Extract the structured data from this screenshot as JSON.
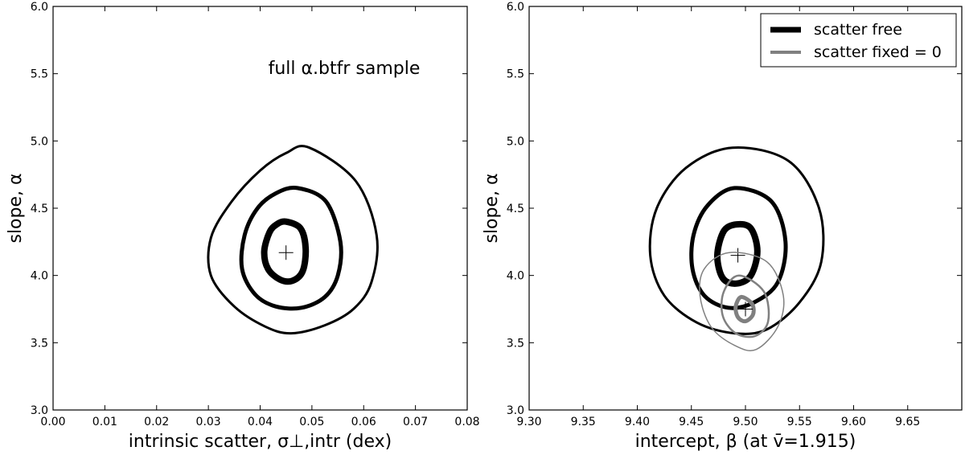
{
  "chart_data": [
    {
      "type": "contour",
      "xlabel": "intrinsic scatter, σ⊥,intr  (dex)",
      "ylabel": "slope, α",
      "xlim": [
        0.0,
        0.08
      ],
      "ylim": [
        3.0,
        6.0
      ],
      "x_ticks": [
        "0.00",
        "0.01",
        "0.02",
        "0.03",
        "0.04",
        "0.05",
        "0.06",
        "0.07",
        "0.08"
      ],
      "y_ticks": [
        "3.0",
        "3.5",
        "4.0",
        "4.5",
        "5.0",
        "5.5",
        "6.0"
      ],
      "annotation": "full α.btfr sample",
      "series": [
        {
          "center": [
            0.045,
            4.17
          ],
          "color": "#000000",
          "contours": [
            {
              "level": 1,
              "points": [
                [
                  0.045,
                  4.4
                ],
                [
                  0.0478,
                  4.35
                ],
                [
                  0.0488,
                  4.2
                ],
                [
                  0.0482,
                  4.03
                ],
                [
                  0.0462,
                  3.96
                ],
                [
                  0.0438,
                  3.97
                ],
                [
                  0.0415,
                  4.05
                ],
                [
                  0.0408,
                  4.18
                ],
                [
                  0.0418,
                  4.32
                ],
                [
                  0.0432,
                  4.38
                ]
              ]
            },
            {
              "level": 2,
              "points": [
                [
                  0.0472,
                  4.65
                ],
                [
                  0.0527,
                  4.55
                ],
                [
                  0.0555,
                  4.25
                ],
                [
                  0.055,
                  4.0
                ],
                [
                  0.0525,
                  3.84
                ],
                [
                  0.048,
                  3.76
                ],
                [
                  0.043,
                  3.77
                ],
                [
                  0.039,
                  3.86
                ],
                [
                  0.0365,
                  4.05
                ],
                [
                  0.037,
                  4.3
                ],
                [
                  0.0395,
                  4.5
                ],
                [
                  0.043,
                  4.61
                ]
              ]
            },
            {
              "level": 3,
              "points": [
                [
                  0.0495,
                  4.95
                ],
                [
                  0.0585,
                  4.7
                ],
                [
                  0.0625,
                  4.3
                ],
                [
                  0.0615,
                  3.95
                ],
                [
                  0.058,
                  3.75
                ],
                [
                  0.0525,
                  3.63
                ],
                [
                  0.046,
                  3.57
                ],
                [
                  0.041,
                  3.62
                ],
                [
                  0.035,
                  3.77
                ],
                [
                  0.0305,
                  4.0
                ],
                [
                  0.0305,
                  4.28
                ],
                [
                  0.0345,
                  4.55
                ],
                [
                  0.04,
                  4.78
                ],
                [
                  0.045,
                  4.91
                ]
              ]
            }
          ]
        }
      ]
    },
    {
      "type": "contour",
      "xlabel": "intercept, β  (at v̄=1.915)",
      "ylabel": "slope, α",
      "xlim": [
        9.3,
        9.7
      ],
      "ylim": [
        3.0,
        6.0
      ],
      "x_ticks": [
        "9.30",
        "9.35",
        "9.40",
        "9.45",
        "9.50",
        "9.55",
        "9.60",
        "9.65"
      ],
      "y_ticks": [
        "3.0",
        "3.5",
        "4.0",
        "4.5",
        "5.0",
        "5.5",
        "6.0"
      ],
      "legend": {
        "placement": "top-right",
        "entries": [
          "scatter free",
          "scatter fixed = 0"
        ]
      },
      "series": [
        {
          "name": "scatter free",
          "center": [
            9.493,
            4.15
          ],
          "color": "#000000",
          "contours": [
            {
              "level": 1,
              "points": [
                [
                  9.492,
                  4.38
                ],
                [
                  9.505,
                  4.35
                ],
                [
                  9.511,
                  4.18
                ],
                [
                  9.505,
                  4.0
                ],
                [
                  9.492,
                  3.94
                ],
                [
                  9.479,
                  3.98
                ],
                [
                  9.474,
                  4.15
                ],
                [
                  9.48,
                  4.33
                ]
              ]
            },
            {
              "level": 2,
              "points": [
                [
                  9.49,
                  4.65
                ],
                [
                  9.524,
                  4.55
                ],
                [
                  9.537,
                  4.25
                ],
                [
                  9.53,
                  3.95
                ],
                [
                  9.508,
                  3.8
                ],
                [
                  9.484,
                  3.76
                ],
                [
                  9.462,
                  3.85
                ],
                [
                  9.451,
                  4.05
                ],
                [
                  9.452,
                  4.3
                ],
                [
                  9.465,
                  4.52
                ]
              ]
            },
            {
              "level": 3,
              "points": [
                [
                  9.488,
                  4.95
                ],
                [
                  9.54,
                  4.85
                ],
                [
                  9.568,
                  4.5
                ],
                [
                  9.57,
                  4.1
                ],
                [
                  9.55,
                  3.8
                ],
                [
                  9.52,
                  3.6
                ],
                [
                  9.49,
                  3.57
                ],
                [
                  9.455,
                  3.65
                ],
                [
                  9.425,
                  3.85
                ],
                [
                  9.412,
                  4.15
                ],
                [
                  9.418,
                  4.5
                ],
                [
                  9.445,
                  4.8
                ]
              ]
            }
          ]
        },
        {
          "name": "scatter fixed = 0",
          "center": [
            9.5,
            3.75
          ],
          "color": "#808080",
          "contours": [
            {
              "level": 1,
              "points": [
                [
                  9.496,
                  3.84
                ],
                [
                  9.506,
                  3.79
                ],
                [
                  9.507,
                  3.71
                ],
                [
                  9.5,
                  3.66
                ],
                [
                  9.493,
                  3.69
                ],
                [
                  9.491,
                  3.77
                ]
              ]
            },
            {
              "level": 2,
              "points": [
                [
                  9.494,
                  4.0
                ],
                [
                  9.517,
                  3.88
                ],
                [
                  9.521,
                  3.66
                ],
                [
                  9.509,
                  3.55
                ],
                [
                  9.491,
                  3.57
                ],
                [
                  9.479,
                  3.7
                ],
                [
                  9.48,
                  3.88
                ]
              ]
            },
            {
              "level": 3,
              "points": [
                [
                  9.485,
                  4.17
                ],
                [
                  9.52,
                  4.1
                ],
                [
                  9.535,
                  3.85
                ],
                [
                  9.53,
                  3.62
                ],
                [
                  9.51,
                  3.45
                ],
                [
                  9.49,
                  3.48
                ],
                [
                  9.468,
                  3.62
                ],
                [
                  9.458,
                  3.85
                ],
                [
                  9.462,
                  4.05
                ]
              ]
            }
          ]
        }
      ]
    }
  ]
}
